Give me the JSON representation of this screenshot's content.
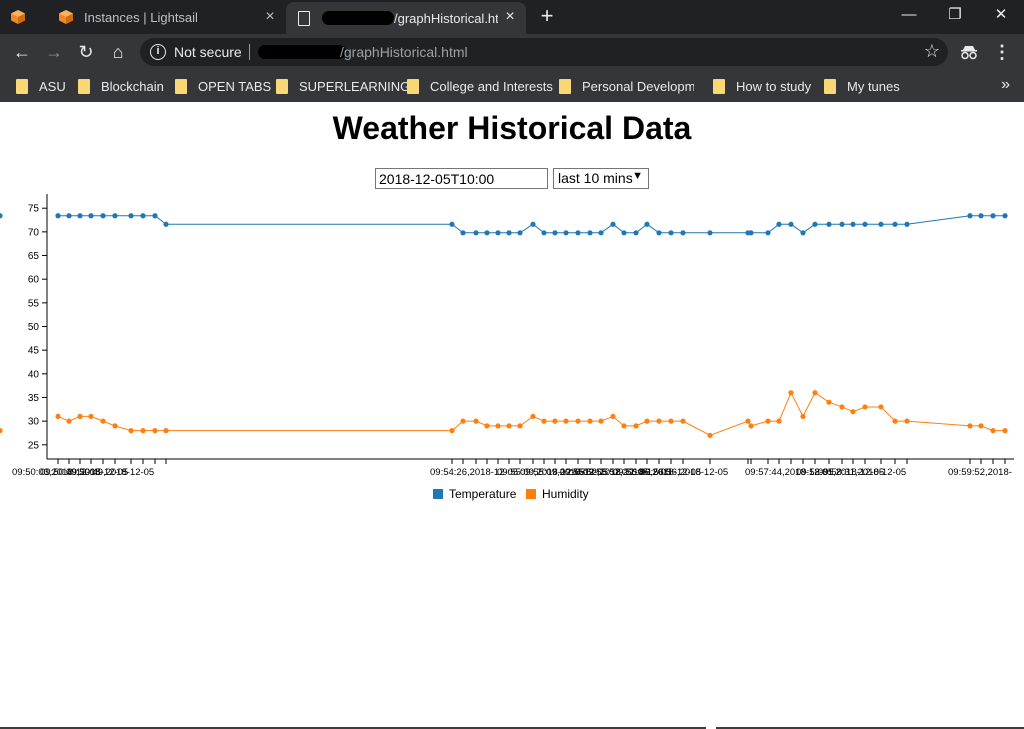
{
  "browser": {
    "tabs": [
      {
        "title": "Instances | Lightsail"
      },
      {
        "title": "/graphHistorical.htm"
      }
    ],
    "address": {
      "security_label": "Not secure",
      "url": "/graphHistorical.html"
    },
    "bookmarks": [
      "ASU",
      "Blockchain",
      "OPEN TABS",
      "SUPERLEARNING",
      "College and Interests",
      "Personal Developmen",
      "How to study",
      "My tunes"
    ]
  },
  "page": {
    "title": "Weather Historical Data",
    "date_input_value": "2018-12-05T10:00",
    "range_select_value": "last 10 mins"
  },
  "chart_data": {
    "type": "line",
    "y_ticks": [
      25,
      30,
      35,
      40,
      45,
      50,
      55,
      60,
      65,
      70,
      75
    ],
    "ylim": [
      22,
      78
    ],
    "x_tick_labels": [
      "09:50:03,2018-12-05",
      "09:50:49,2018-12-05",
      "09:54:26,2018-12-05",
      "09:55:09,2018-12-05",
      "09:55:52,2018-12-05",
      "09:56:36,2018-12-05",
      "09:57:44,2018-12-05",
      "09:58:31,2018-12-05",
      "09:59:52,2018-"
    ],
    "series": [
      {
        "name": "Temperature",
        "color": "#1f77b4",
        "values": [
          73.4,
          73.4,
          73.4,
          73.4,
          73.4,
          73.4,
          73.4,
          73.4,
          73.4,
          71.6,
          71.6,
          69.8,
          69.8,
          69.8,
          69.8,
          69.8,
          69.8,
          71.6,
          69.8,
          69.8,
          69.8,
          69.8,
          69.8,
          69.8,
          71.6,
          69.8,
          69.8,
          71.6,
          69.8,
          69.8,
          69.8,
          69.8,
          69.8,
          69.8,
          69.8,
          71.6,
          71.6,
          69.8,
          71.6,
          71.6,
          71.6,
          71.6,
          71.6,
          71.6,
          71.6,
          71.6,
          73.4,
          73.4,
          73.4,
          73.4,
          73.4
        ]
      },
      {
        "name": "Humidity",
        "color": "#ff7f0e",
        "values": [
          31,
          30,
          31,
          31,
          30,
          29,
          28,
          28,
          28,
          28,
          28,
          30,
          30,
          29,
          29,
          29,
          29,
          31,
          30,
          30,
          30,
          30,
          30,
          30,
          31,
          29,
          29,
          30,
          30,
          30,
          30,
          27,
          30,
          29,
          30,
          30,
          36,
          31,
          36,
          34,
          33,
          32,
          33,
          33,
          30,
          30,
          29,
          29,
          28,
          28,
          28
        ]
      }
    ]
  }
}
